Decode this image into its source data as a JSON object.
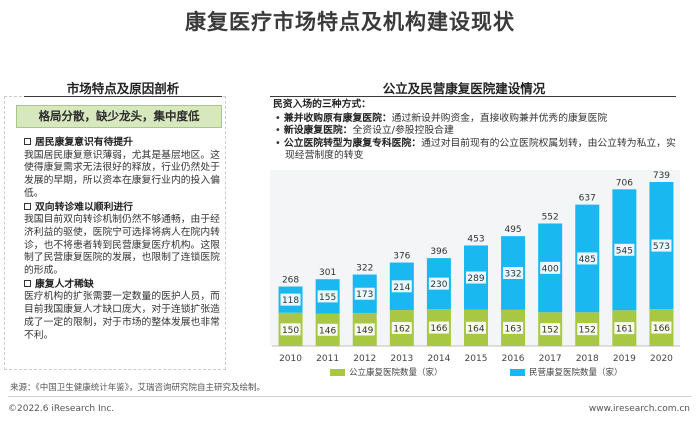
{
  "title": "康复医疗市场特点及机构建设现状",
  "left": {
    "heading": "市场特点及原因剖析",
    "banner": "格局分散，缺少龙头，集中度低",
    "sections": [
      {
        "title": "居民康复意识有待提升",
        "body": "我国居民康复意识薄弱，尤其是基层地区。这使得康复需求无法很好的释放，行业仍然处于发展的早期，所以资本在康复行业内的投入偏低。"
      },
      {
        "title": "双向转诊难以顺利进行",
        "body": "我国目前双向转诊机制仍然不够通畅，由于经济利益的驱使，医院宁可选择将病人在院内转诊，也不将患者转到民营康复医疗机构。这限制了民营康复医院的发展，也限制了连锁医院的形成。"
      },
      {
        "title": "康复人才稀缺",
        "body": "医疗机构的扩张需要一定数量的医护人员，而目前我国康复人才缺口庞大，对于连锁扩张造成了一定的限制，对于市场的整体发展也非常不利。"
      }
    ]
  },
  "right": {
    "heading": "公立及民营康复医院建设情况",
    "intro": "民资入场的三种方式：",
    "bullets": [
      {
        "label": "兼并收购原有康复医院：",
        "text": "通过新设并购资金，直接收购兼并优秀的康复医院"
      },
      {
        "label": "新设康复医院：",
        "text": "全资设立/参股控股合建"
      },
      {
        "label": "公立医院转型为康复专科医院：",
        "text": "通过对目前现有的公立医院权属划转，由公立转为私立，实现经营制度的转变"
      }
    ]
  },
  "chart_data": {
    "type": "bar",
    "stacked": true,
    "categories": [
      "2010",
      "2011",
      "2012",
      "2013",
      "2014",
      "2015",
      "2016",
      "2017",
      "2018",
      "2019",
      "2020"
    ],
    "series": [
      {
        "name": "公立康复医院数量（家）",
        "values": [
          150,
          146,
          149,
          162,
          166,
          164,
          163,
          152,
          152,
          161,
          166
        ],
        "color": "#a8c844"
      },
      {
        "name": "民营康复医院数量（家）",
        "values": [
          118,
          155,
          173,
          214,
          230,
          289,
          332,
          400,
          485,
          545,
          573
        ],
        "color": "#1ab8f0"
      }
    ],
    "totals": [
      268,
      301,
      322,
      376,
      396,
      453,
      495,
      552,
      637,
      706,
      739
    ],
    "grid": false,
    "legend_position": "bottom"
  },
  "source": "来源：《中国卫生健康统计年鉴》，艾瑞咨询研究院自主研究及绘制。",
  "footer": {
    "left": "©2022.6 iResearch Inc.",
    "right": "www.iresearch.com.cn"
  }
}
